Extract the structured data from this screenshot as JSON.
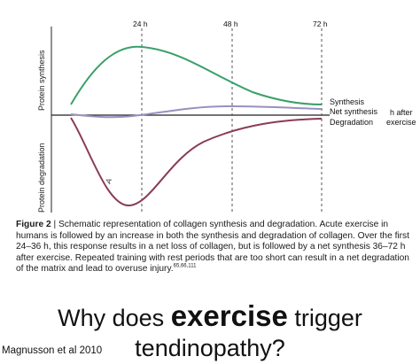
{
  "figure": {
    "y_axis_top_label": "Protein synthesis",
    "y_axis_bottom_label": "Protein degradation",
    "time_ticks": [
      "24 h",
      "48 h",
      "72 h"
    ],
    "x_axis_label_line1": "h after",
    "x_axis_label_line2": "exercise",
    "curve_labels": {
      "synthesis": "Synthesis",
      "net_synthesis": "Net synthesis",
      "degradation": "Degradation"
    },
    "colors": {
      "synthesis": "#3aa06a",
      "net_synthesis": "#9a90bf",
      "degradation": "#8a3b55",
      "gridline": "#555555"
    }
  },
  "caption": {
    "label": "Figure 2",
    "text": " | Schematic representation of collagen synthesis and degradation. Acute exercise in humans is followed by an increase in both the synthesis and degradation of collagen. Over the first 24–36 h, this response results in a net loss of collagen, but is followed by a net synthesis 36–72 h after exercise. Repeated training with rest periods that are too short can result in a net degradation of the matrix and lead to overuse injury.",
    "refs": "65,66,111"
  },
  "slide": {
    "title_part1": "Why does ",
    "title_emphasis": "exercise",
    "title_part2": " trigger",
    "title_line2": "tendinopathy?",
    "citation": "Magnusson et al 2010"
  }
}
